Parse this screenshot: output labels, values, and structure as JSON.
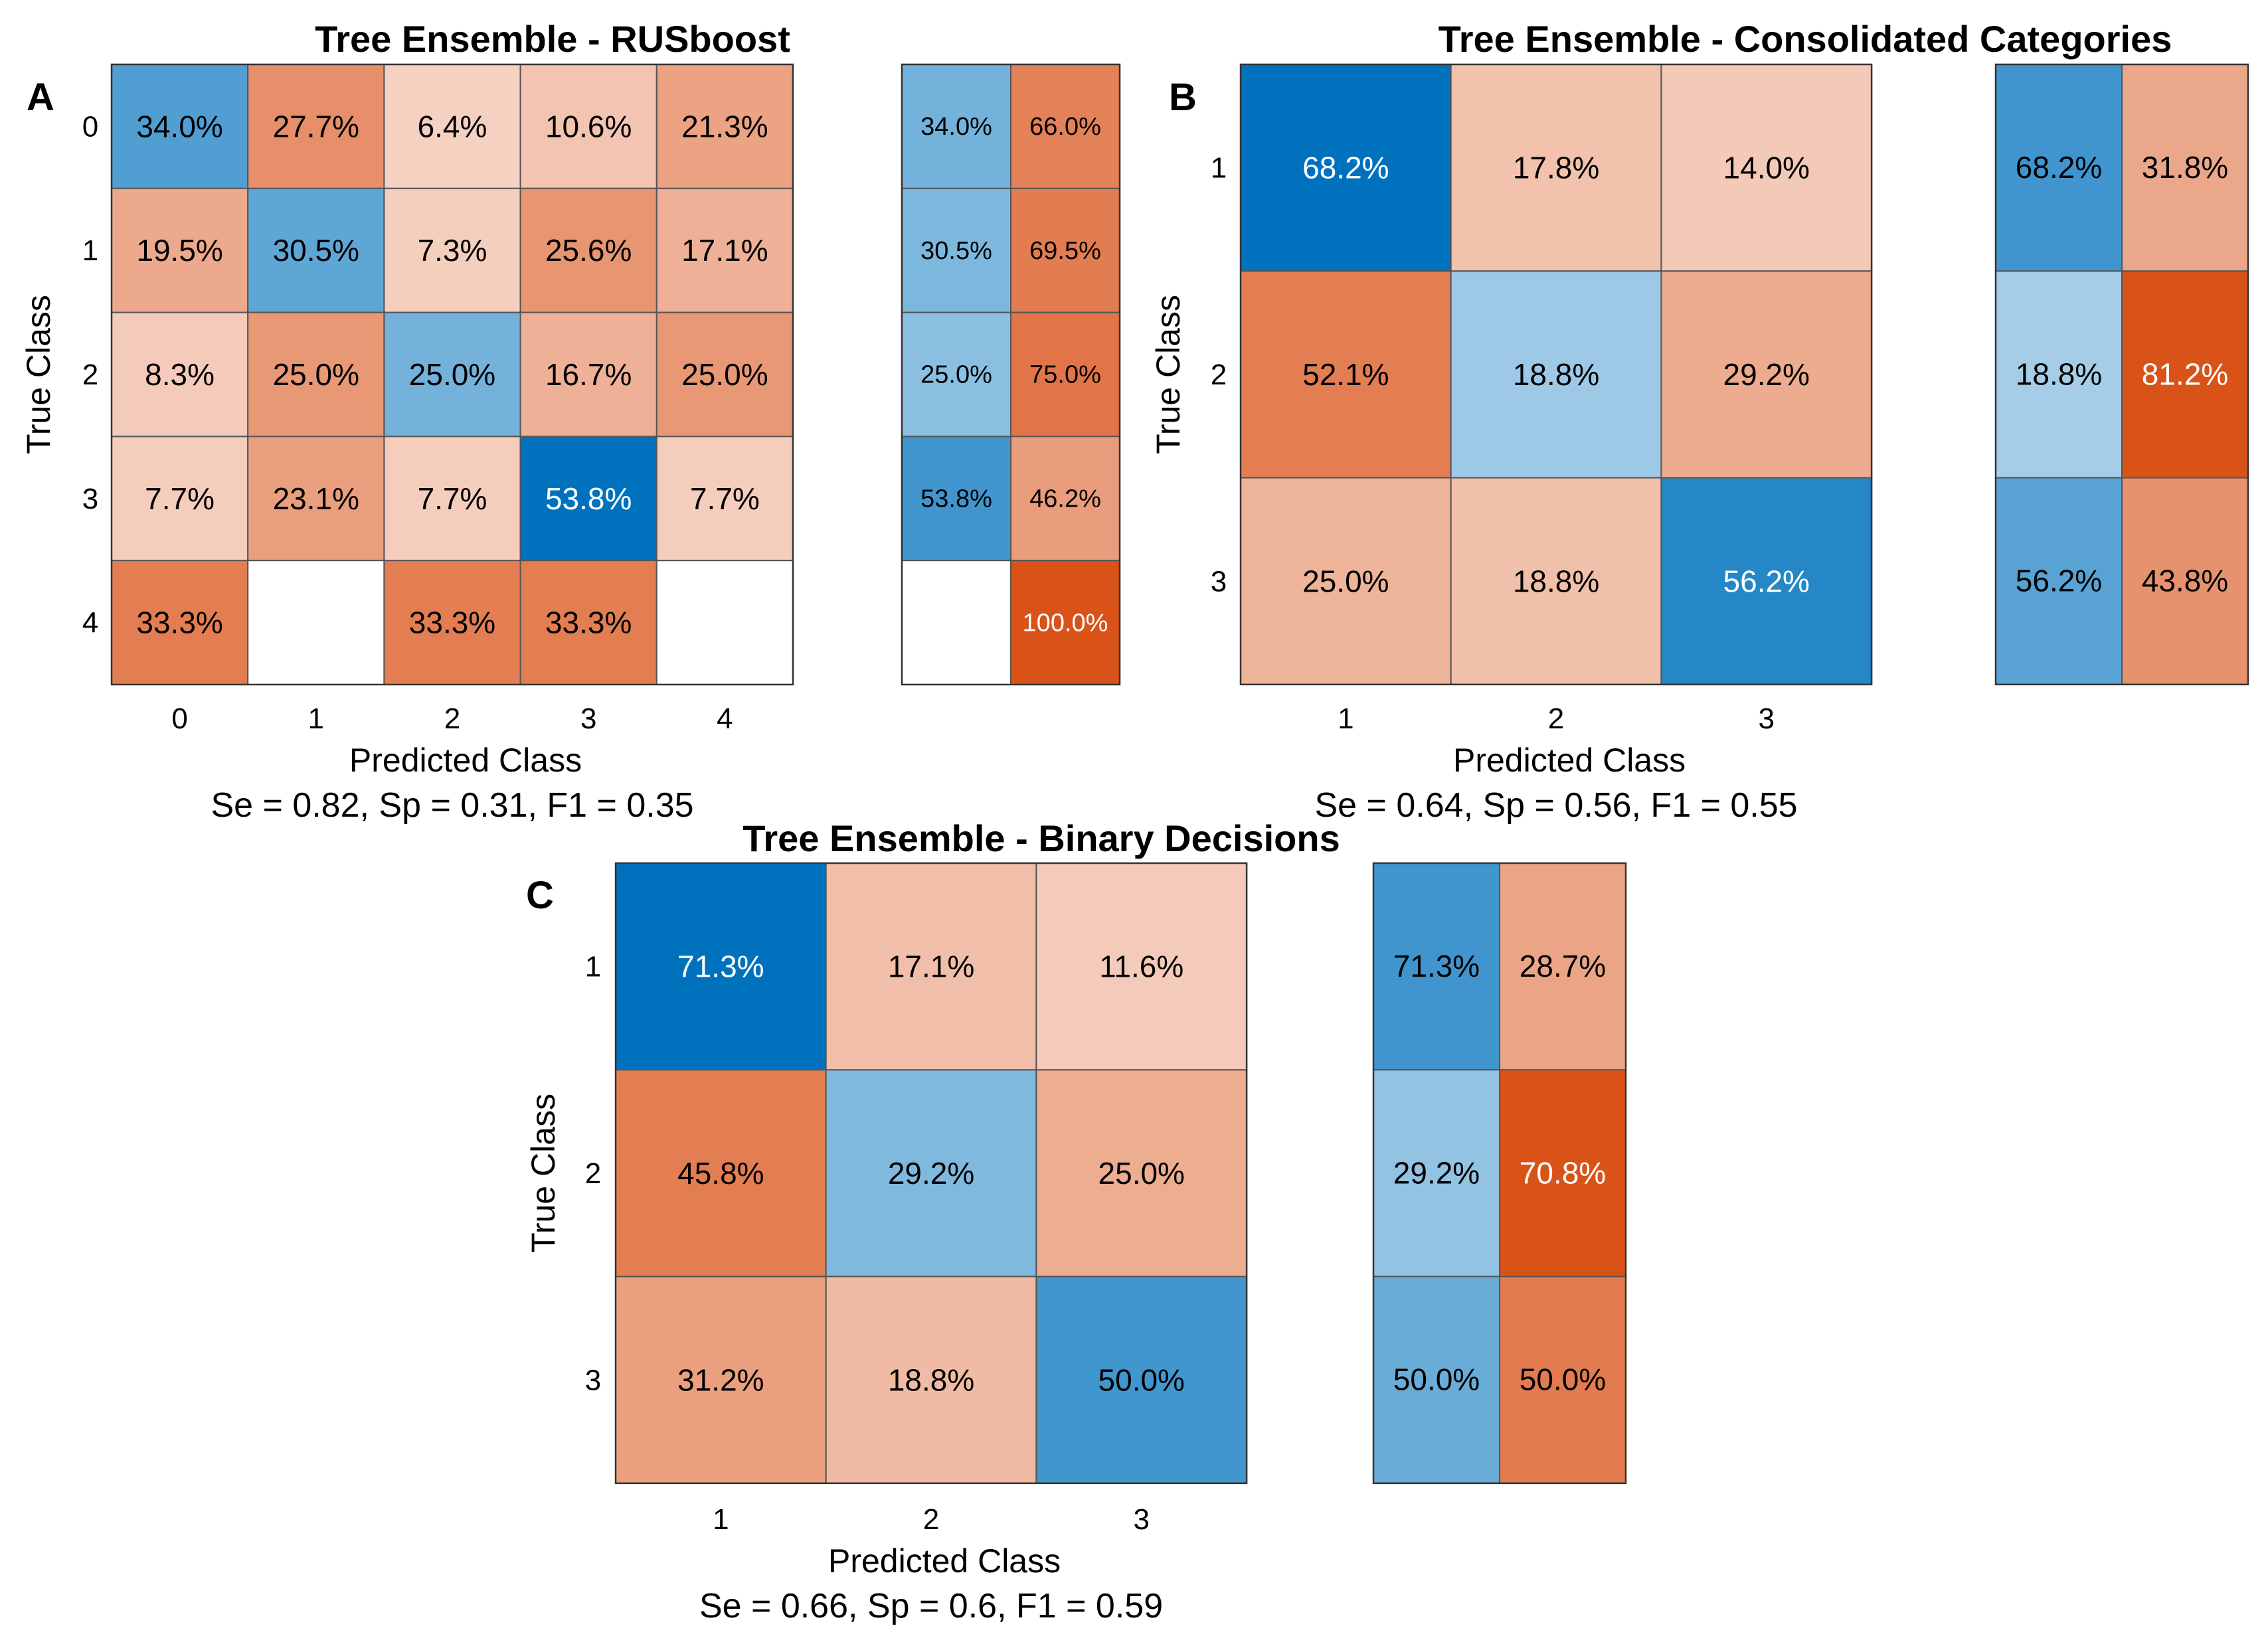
{
  "chart_data": [
    {
      "type": "heatmap",
      "panel_label": "A",
      "title": "Tree Ensemble - RUSboost",
      "xlabel": "Predicted Class",
      "ylabel": "True Class",
      "categories": [
        "0",
        "1",
        "2",
        "3",
        "4"
      ],
      "matrix": [
        [
          "34.0%",
          "27.7%",
          "6.4%",
          "10.6%",
          "21.3%"
        ],
        [
          "19.5%",
          "30.5%",
          "7.3%",
          "25.6%",
          "17.1%"
        ],
        [
          "8.3%",
          "25.0%",
          "25.0%",
          "16.7%",
          "25.0%"
        ],
        [
          "7.7%",
          "23.1%",
          "7.7%",
          "53.8%",
          "7.7%"
        ],
        [
          "33.3%",
          "",
          "33.3%",
          "33.3%",
          ""
        ]
      ],
      "row_summary": [
        [
          "34.0%",
          "66.0%"
        ],
        [
          "30.5%",
          "69.5%"
        ],
        [
          "25.0%",
          "75.0%"
        ],
        [
          "53.8%",
          "46.2%"
        ],
        [
          "",
          "100.0%"
        ]
      ],
      "summary": "Se = 0.82, Sp = 0.31, F1 = 0.35"
    },
    {
      "type": "heatmap",
      "panel_label": "B",
      "title": "Tree Ensemble - Consolidated Categories",
      "xlabel": "Predicted Class",
      "ylabel": "True Class",
      "categories": [
        "1",
        "2",
        "3"
      ],
      "matrix": [
        [
          "68.2%",
          "17.8%",
          "14.0%"
        ],
        [
          "52.1%",
          "18.8%",
          "29.2%"
        ],
        [
          "25.0%",
          "18.8%",
          "56.2%"
        ]
      ],
      "row_summary": [
        [
          "68.2%",
          "31.8%"
        ],
        [
          "18.8%",
          "81.2%"
        ],
        [
          "56.2%",
          "43.8%"
        ]
      ],
      "summary": "Se = 0.64, Sp = 0.56, F1 = 0.55"
    },
    {
      "type": "heatmap",
      "panel_label": "C",
      "title": "Tree Ensemble - Binary Decisions",
      "xlabel": "Predicted Class",
      "ylabel": "True Class",
      "categories": [
        "1",
        "2",
        "3"
      ],
      "matrix": [
        [
          "71.3%",
          "17.1%",
          "11.6%"
        ],
        [
          "45.8%",
          "29.2%",
          "25.0%"
        ],
        [
          "31.2%",
          "18.8%",
          "50.0%"
        ]
      ],
      "row_summary": [
        [
          "71.3%",
          "28.7%"
        ],
        [
          "29.2%",
          "70.8%"
        ],
        [
          "50.0%",
          "50.0%"
        ]
      ],
      "summary": "Se = 0.66, Sp = 0.6, F1 = 0.59"
    }
  ],
  "colors": {
    "correct": "#0072bd",
    "incorrect": "#d95319",
    "cell_border": "#555555",
    "light_text": "#ffffff",
    "dark_text": "#000000"
  }
}
